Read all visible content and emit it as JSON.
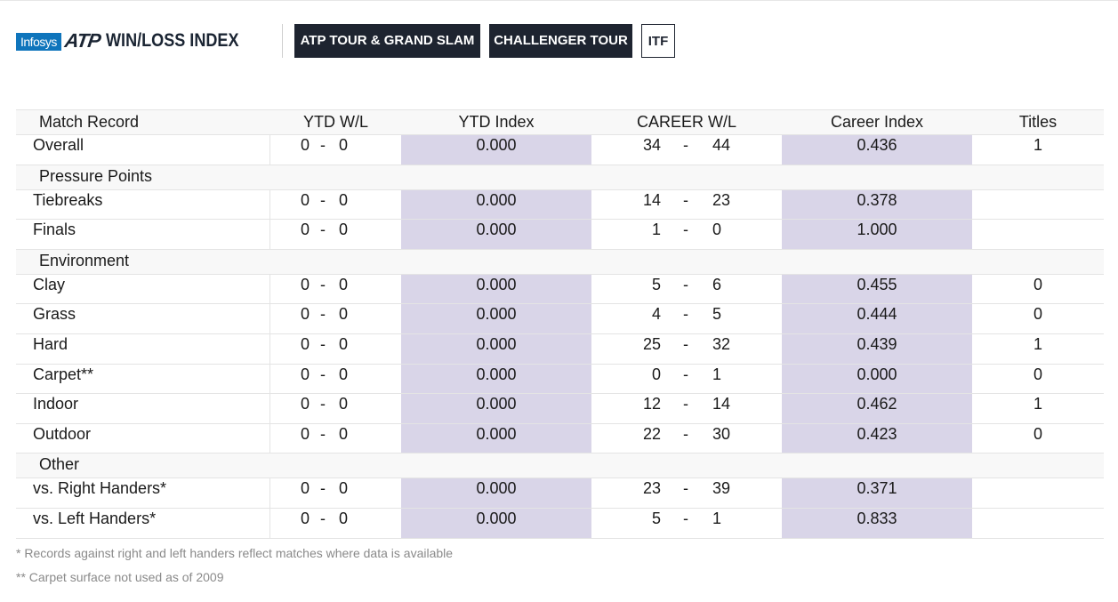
{
  "header": {
    "sponsor": "Infosys",
    "logo": "ATP",
    "title": "WIN/LOSS INDEX",
    "tabs": [
      {
        "label": "ATP TOUR & GRAND SLAM",
        "active": true
      },
      {
        "label": "CHALLENGER TOUR",
        "active": true
      },
      {
        "label": "ITF",
        "active": false
      }
    ]
  },
  "table": {
    "columns": [
      "Match Record",
      "YTD W/L",
      "YTD Index",
      "CAREER W/L",
      "Career Index",
      "Titles"
    ],
    "sections": [
      {
        "rows": [
          {
            "name": "Overall",
            "ytd_w": "0",
            "ytd_l": "0",
            "ytd_index": "0.000",
            "career_w": "34",
            "career_l": "44",
            "career_index": "0.436",
            "titles": "1"
          }
        ]
      },
      {
        "title": "Pressure Points",
        "rows": [
          {
            "name": "Tiebreaks",
            "ytd_w": "0",
            "ytd_l": "0",
            "ytd_index": "0.000",
            "career_w": "14",
            "career_l": "23",
            "career_index": "0.378",
            "titles": ""
          },
          {
            "name": "Finals",
            "ytd_w": "0",
            "ytd_l": "0",
            "ytd_index": "0.000",
            "career_w": "1",
            "career_l": "0",
            "career_index": "1.000",
            "titles": ""
          }
        ]
      },
      {
        "title": "Environment",
        "rows": [
          {
            "name": "Clay",
            "ytd_w": "0",
            "ytd_l": "0",
            "ytd_index": "0.000",
            "career_w": "5",
            "career_l": "6",
            "career_index": "0.455",
            "titles": "0"
          },
          {
            "name": "Grass",
            "ytd_w": "0",
            "ytd_l": "0",
            "ytd_index": "0.000",
            "career_w": "4",
            "career_l": "5",
            "career_index": "0.444",
            "titles": "0"
          },
          {
            "name": "Hard",
            "ytd_w": "0",
            "ytd_l": "0",
            "ytd_index": "0.000",
            "career_w": "25",
            "career_l": "32",
            "career_index": "0.439",
            "titles": "1"
          },
          {
            "name": "Carpet**",
            "ytd_w": "0",
            "ytd_l": "0",
            "ytd_index": "0.000",
            "career_w": "0",
            "career_l": "1",
            "career_index": "0.000",
            "titles": "0"
          },
          {
            "name": "Indoor",
            "ytd_w": "0",
            "ytd_l": "0",
            "ytd_index": "0.000",
            "career_w": "12",
            "career_l": "14",
            "career_index": "0.462",
            "titles": "1"
          },
          {
            "name": "Outdoor",
            "ytd_w": "0",
            "ytd_l": "0",
            "ytd_index": "0.000",
            "career_w": "22",
            "career_l": "30",
            "career_index": "0.423",
            "titles": "0"
          }
        ]
      },
      {
        "title": "Other",
        "rows": [
          {
            "name": "vs. Right Handers*",
            "ytd_w": "0",
            "ytd_l": "0",
            "ytd_index": "0.000",
            "career_w": "23",
            "career_l": "39",
            "career_index": "0.371",
            "titles": ""
          },
          {
            "name": "vs. Left Handers*",
            "ytd_w": "0",
            "ytd_l": "0",
            "ytd_index": "0.000",
            "career_w": "5",
            "career_l": "1",
            "career_index": "0.833",
            "titles": ""
          }
        ]
      }
    ]
  },
  "notes": [
    "* Records against right and left handers reflect matches where data is available",
    "** Carpet surface not used as of 2009"
  ]
}
